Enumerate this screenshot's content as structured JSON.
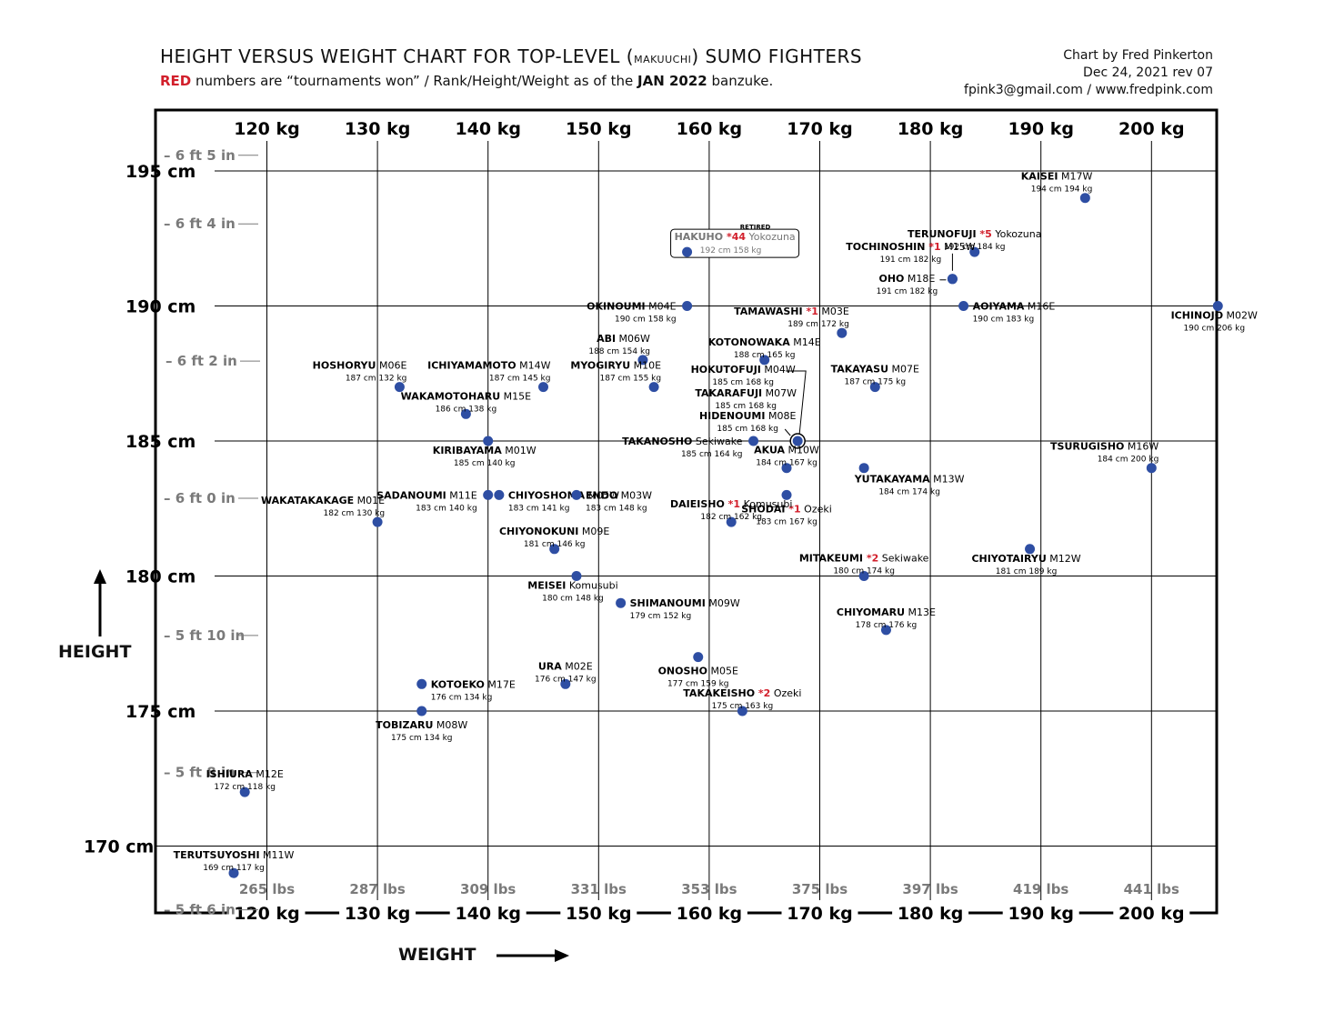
{
  "header": {
    "title_pre": "HEIGHT VERSUS WEIGHT CHART FOR TOP-LEVEL (",
    "title_small": "makuuchi",
    "title_post": ") SUMO FIGHTERS",
    "sub_red": "RED",
    "sub_a": " numbers are “tournaments won” / Rank/Height/Weight as of the ",
    "sub_bold": "JAN 2022",
    "sub_b": " banzuke."
  },
  "credit": {
    "line1": "Chart by Fred Pinkerton",
    "line2": "Dec 24, 2021 rev 07",
    "line3": "fpink3@gmail.com / www.fredpink.com"
  },
  "axis_titles": {
    "y": "HEIGHT",
    "x": "WEIGHT"
  },
  "colors": {
    "point": "#2e4ea3",
    "red": "#d21f2b",
    "grey_tick": "#7a7a7a",
    "frame": "#000000"
  },
  "chart_data": {
    "type": "scatter",
    "xlabel": "WEIGHT",
    "ylabel": "HEIGHT",
    "xlim": [
      110,
      206
    ],
    "ylim": [
      168.5,
      198
    ],
    "grid": true,
    "x_ticks_kg": [
      120,
      130,
      140,
      150,
      160,
      170,
      180,
      190,
      200
    ],
    "x_tick_labels_kg": [
      "120 kg",
      "130 kg",
      "140 kg",
      "150 kg",
      "160 kg",
      "170 kg",
      "180 kg",
      "190 kg",
      "200 kg"
    ],
    "x_tick_labels_lbs": [
      "265 lbs",
      "287 lbs",
      "309 lbs",
      "331 lbs",
      "353 lbs",
      "375 lbs",
      "397 lbs",
      "419 lbs",
      "441 lbs"
    ],
    "y_ticks_cm": [
      170,
      175,
      180,
      185,
      190,
      195
    ],
    "y_tick_labels_cm": [
      "170 cm",
      "175 cm",
      "180 cm",
      "185 cm",
      "190 cm",
      "195 cm"
    ],
    "y_ticks_in": [
      {
        "label": "5 ft 6 in",
        "cm": 167.64
      },
      {
        "label": "5 ft 8 in",
        "cm": 172.72
      },
      {
        "label": "5 ft 10 in",
        "cm": 177.8
      },
      {
        "label": "6 ft 0 in",
        "cm": 182.88
      },
      {
        "label": "6 ft 2 in",
        "cm": 187.96
      },
      {
        "label": "6 ft 4 in",
        "cm": 193.04
      },
      {
        "label": "6 ft 5 in",
        "cm": 195.58
      }
    ],
    "points": [
      {
        "name": "KAISEI",
        "rank": "M17W",
        "wins": "",
        "h": 194,
        "w": 194,
        "hw": "194 cm  194 kg",
        "label": "ul"
      },
      {
        "name": "TERUNOFUJI",
        "rank": "Yokozuna",
        "wins": "*5",
        "h": 192,
        "w": 184,
        "hw": "192 cm  184 kg",
        "label": "u"
      },
      {
        "name": "HAKUHO",
        "rank": "Yokozuna",
        "wins": "*44",
        "h": 192,
        "w": 158,
        "hw": "192 cm  158 kg",
        "label": "boxed",
        "note": "RETIRED"
      },
      {
        "name": "TOCHINOSHIN",
        "rank": "M15W",
        "wins": "*1",
        "h": 191,
        "w": 182,
        "hw": "191 cm  182 kg",
        "label": "tochi"
      },
      {
        "name": "OHO",
        "rank": "M18E",
        "wins": "",
        "h": 191,
        "w": 182,
        "hw": "191 cm  182 kg",
        "label": "oho"
      },
      {
        "name": "OKINOUMI",
        "rank": "M04E",
        "wins": "",
        "h": 190,
        "w": 158,
        "hw": "190 cm  158 kg",
        "label": "l"
      },
      {
        "name": "TAMAWASHI",
        "rank": "M03E",
        "wins": "*1",
        "h": 189,
        "w": 172,
        "hw": "189 cm  172 kg",
        "label": "ul"
      },
      {
        "name": "AOIYAMA",
        "rank": "M16E",
        "wins": "",
        "h": 190,
        "w": 183,
        "hw": "190 cm  183 kg",
        "label": "r"
      },
      {
        "name": "ICHINOJO",
        "rank": "M02W",
        "wins": "",
        "h": 190,
        "w": 206,
        "hw": "190 cm  206 kg",
        "label": "dl"
      },
      {
        "name": "ABI",
        "rank": "M06W",
        "wins": "",
        "h": 188,
        "w": 154,
        "hw": "188 cm  154 kg",
        "label": "ul"
      },
      {
        "name": "KOTONOWAKA",
        "rank": "M14E",
        "wins": "",
        "h": 188,
        "w": 165,
        "hw": "188 cm  165 kg",
        "label": "u"
      },
      {
        "name": "HOSHORYU",
        "rank": "M06E",
        "wins": "",
        "h": 187,
        "w": 132,
        "hw": "187 cm  132 kg",
        "label": "ul"
      },
      {
        "name": "ICHIYAMAMOTO",
        "rank": "M14W",
        "wins": "",
        "h": 187,
        "w": 145,
        "hw": "187 cm  145 kg",
        "label": "ul"
      },
      {
        "name": "MYOGIRYU",
        "rank": "M10E",
        "wins": "",
        "h": 187,
        "w": 155,
        "hw": "187 cm  155 kg",
        "label": "ul"
      },
      {
        "name": "HOKUTOFUJI",
        "rank": "M04W",
        "wins": "",
        "h": 185,
        "w": 168,
        "hw": "185 cm  168 kg",
        "label": "grp1"
      },
      {
        "name": "TAKARAFUJI",
        "rank": "M07W",
        "wins": "",
        "h": 185,
        "w": 168,
        "hw": "185 cm  168 kg",
        "label": "grp2"
      },
      {
        "name": "HIDENOUMI",
        "rank": "M08E",
        "wins": "",
        "h": 185,
        "w": 168,
        "hw": "185 cm  168 kg",
        "label": "grp3"
      },
      {
        "name": "TAKAYASU",
        "rank": "M07E",
        "wins": "",
        "h": 187,
        "w": 175,
        "hw": "187 cm  175 kg",
        "label": "u"
      },
      {
        "name": "WAKAMOTOHARU",
        "rank": "M15E",
        "wins": "",
        "h": 186,
        "w": 138,
        "hw": "186 cm  138 kg",
        "label": "u"
      },
      {
        "name": "KIRIBAYAMA",
        "rank": "M01W",
        "wins": "",
        "h": 185,
        "w": 140,
        "hw": "185 cm  140 kg",
        "label": "dl"
      },
      {
        "name": "TAKANOSHO",
        "rank": "Sekiwake",
        "wins": "",
        "h": 185,
        "w": 164,
        "hw": "185 cm  164 kg",
        "label": "l"
      },
      {
        "name": "AKUA",
        "rank": "M10W",
        "wins": "",
        "h": 184,
        "w": 167,
        "hw": "184 cm  167 kg",
        "label": "u"
      },
      {
        "name": "YUTAKAYAMA",
        "rank": "M13W",
        "wins": "",
        "h": 184,
        "w": 174,
        "hw": "184 cm  174 kg",
        "label": "dr"
      },
      {
        "name": "TSURUGISHO",
        "rank": "M16W",
        "wins": "",
        "h": 184,
        "w": 200,
        "hw": "184 cm  200 kg",
        "label": "ul"
      },
      {
        "name": "CHIYOSHOMA",
        "rank": "M05W",
        "wins": "",
        "h": 183,
        "w": 141,
        "hw": "183 cm  141 kg",
        "label": "r"
      },
      {
        "name": "SADANOUMI",
        "rank": "M11E",
        "wins": "",
        "h": 183,
        "w": 140,
        "hw": "183 cm  140 kg",
        "label": "l"
      },
      {
        "name": "ENDO",
        "rank": "M03W",
        "wins": "",
        "h": 183,
        "w": 148,
        "hw": "183 cm  148 kg",
        "label": "r"
      },
      {
        "name": "SHODAI",
        "rank": "Ozeki",
        "wins": "*1",
        "h": 183,
        "w": 167,
        "hw": "183 cm  167 kg",
        "label": "d"
      },
      {
        "name": "WAKATAKAKAGE",
        "rank": "M01E",
        "wins": "",
        "h": 182,
        "w": 130,
        "hw": "182 cm  130 kg",
        "label": "ul"
      },
      {
        "name": "CHIYONOKUNI",
        "rank": "M09E",
        "wins": "",
        "h": 181,
        "w": 146,
        "hw": "181 cm  146 kg",
        "label": "u"
      },
      {
        "name": "DAIEISHO",
        "rank": "Komusubi",
        "wins": "*1",
        "h": 182,
        "w": 162,
        "hw": "182 cm  162 kg",
        "label": "u"
      },
      {
        "name": "MITAKEUMI",
        "rank": "Sekiwake",
        "wins": "*2",
        "h": 180,
        "w": 174,
        "hw": "180 cm  174 kg",
        "label": "u"
      },
      {
        "name": "CHIYOTAIRYU",
        "rank": "M12W",
        "wins": "",
        "h": 181,
        "w": 189,
        "hw": "181 cm  189 kg",
        "label": "dl"
      },
      {
        "name": "MEISEI",
        "rank": "Komusubi",
        "wins": "",
        "h": 180,
        "w": 148,
        "hw": "180 cm  148 kg",
        "label": "dl"
      },
      {
        "name": "SHIMANOUMI",
        "rank": "M09W",
        "wins": "",
        "h": 179,
        "w": 152,
        "hw": "179 cm  152 kg",
        "label": "r"
      },
      {
        "name": "CHIYOMARU",
        "rank": "M13E",
        "wins": "",
        "h": 178,
        "w": 176,
        "hw": "178 cm  176 kg",
        "label": "u"
      },
      {
        "name": "ONOSHO",
        "rank": "M05E",
        "wins": "",
        "h": 177,
        "w": 159,
        "hw": "177 cm  159 kg",
        "label": "d"
      },
      {
        "name": "URA",
        "rank": "M02E",
        "wins": "",
        "h": 176,
        "w": 147,
        "hw": "176 cm  147 kg",
        "label": "u"
      },
      {
        "name": "KOTOEKO",
        "rank": "M17E",
        "wins": "",
        "h": 176,
        "w": 134,
        "hw": "176 cm  134 kg",
        "label": "r"
      },
      {
        "name": "TAKAKEISHO",
        "rank": "Ozeki",
        "wins": "*2",
        "h": 175,
        "w": 163,
        "hw": "175 cm  163 kg",
        "label": "u"
      },
      {
        "name": "TOBIZARU",
        "rank": "M08W",
        "wins": "",
        "h": 175,
        "w": 134,
        "hw": "175 cm  134 kg",
        "label": "d"
      },
      {
        "name": "ISHIURA",
        "rank": "M12E",
        "wins": "",
        "h": 172,
        "w": 118,
        "hw": "172 cm  118 kg",
        "label": "u"
      },
      {
        "name": "TERUTSUYOSHI",
        "rank": "M11W",
        "wins": "",
        "h": 169,
        "w": 117,
        "hw": "169 cm  117 kg",
        "label": "u"
      }
    ]
  }
}
